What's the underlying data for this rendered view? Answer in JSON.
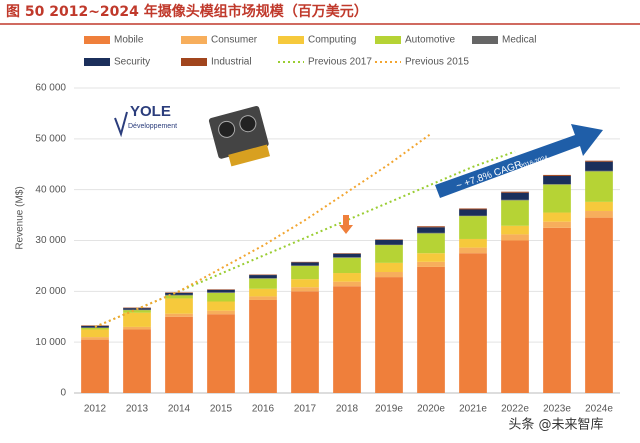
{
  "chart_data": {
    "type": "bar",
    "title": "图 50  2012~2024 年摄像头模组市场规模（百万美元）",
    "y_label": "Revenue (M$)",
    "annotation": "~ +7.8% CAGR",
    "annotation_sub": "2018-2024",
    "logo": "YOLE",
    "logo_sub": "Développement",
    "watermark": "头条 @未来智库",
    "categories": [
      "2012",
      "2013",
      "2014",
      "2015",
      "2016",
      "2017",
      "2018",
      "2019e",
      "2020e",
      "2021e",
      "2022e",
      "2023e",
      "2024e"
    ],
    "series": [
      {
        "name": "Mobile",
        "color": "#ef7f3b",
        "values": [
          10500,
          12500,
          15000,
          15500,
          18300,
          20000,
          21000,
          22800,
          24800,
          27500,
          30000,
          32500,
          34500
        ]
      },
      {
        "name": "Consumer",
        "color": "#f7ae5c",
        "values": [
          500,
          500,
          600,
          700,
          700,
          800,
          900,
          1000,
          1000,
          1100,
          1200,
          1200,
          1300
        ]
      },
      {
        "name": "Computing",
        "color": "#f6c93c",
        "values": [
          1500,
          2800,
          3000,
          1800,
          1500,
          1600,
          1700,
          1800,
          1700,
          1700,
          1700,
          1800,
          1800
        ]
      },
      {
        "name": "Automotive",
        "color": "#b6d335",
        "values": [
          300,
          500,
          600,
          1700,
          2000,
          2600,
          3000,
          3500,
          3900,
          4500,
          5000,
          5500,
          6000
        ]
      },
      {
        "name": "Medical",
        "color": "#666666",
        "values": [
          100,
          100,
          100,
          100,
          100,
          100,
          100,
          100,
          100,
          100,
          100,
          100,
          100
        ]
      },
      {
        "name": "Security",
        "color": "#1b2f5b",
        "values": [
          300,
          300,
          400,
          500,
          600,
          600,
          700,
          900,
          1100,
          1200,
          1400,
          1600,
          1800
        ]
      },
      {
        "name": "Industrial",
        "color": "#a1451d",
        "values": [
          100,
          100,
          100,
          100,
          100,
          100,
          100,
          100,
          200,
          200,
          200,
          200,
          200
        ]
      },
      {
        "name": "Previous 2017",
        "type": "line",
        "color": "#9acd32",
        "values": [
          13000,
          16500,
          20000,
          23500,
          27000,
          30500,
          34000,
          37500,
          41000,
          44500,
          47500,
          null,
          null
        ]
      },
      {
        "name": "Previous 2015",
        "type": "line",
        "color": "#f2a530",
        "values": [
          13000,
          16500,
          20000,
          24500,
          29000,
          34000,
          39500,
          45000,
          51000,
          null,
          null,
          null,
          null
        ]
      }
    ],
    "ylim": [
      0,
      60000
    ],
    "yticks": [
      0,
      {
        "value": 10000,
        "label": "10 000"
      },
      {
        "value": 20000,
        "label": "20 000"
      },
      {
        "value": 30000,
        "label": "30 000"
      },
      {
        "value": 40000,
        "label": "40 000"
      },
      {
        "value": 50000,
        "label": "50 000"
      },
      {
        "value": 60000,
        "label": "60 000"
      }
    ],
    "grid": true
  }
}
